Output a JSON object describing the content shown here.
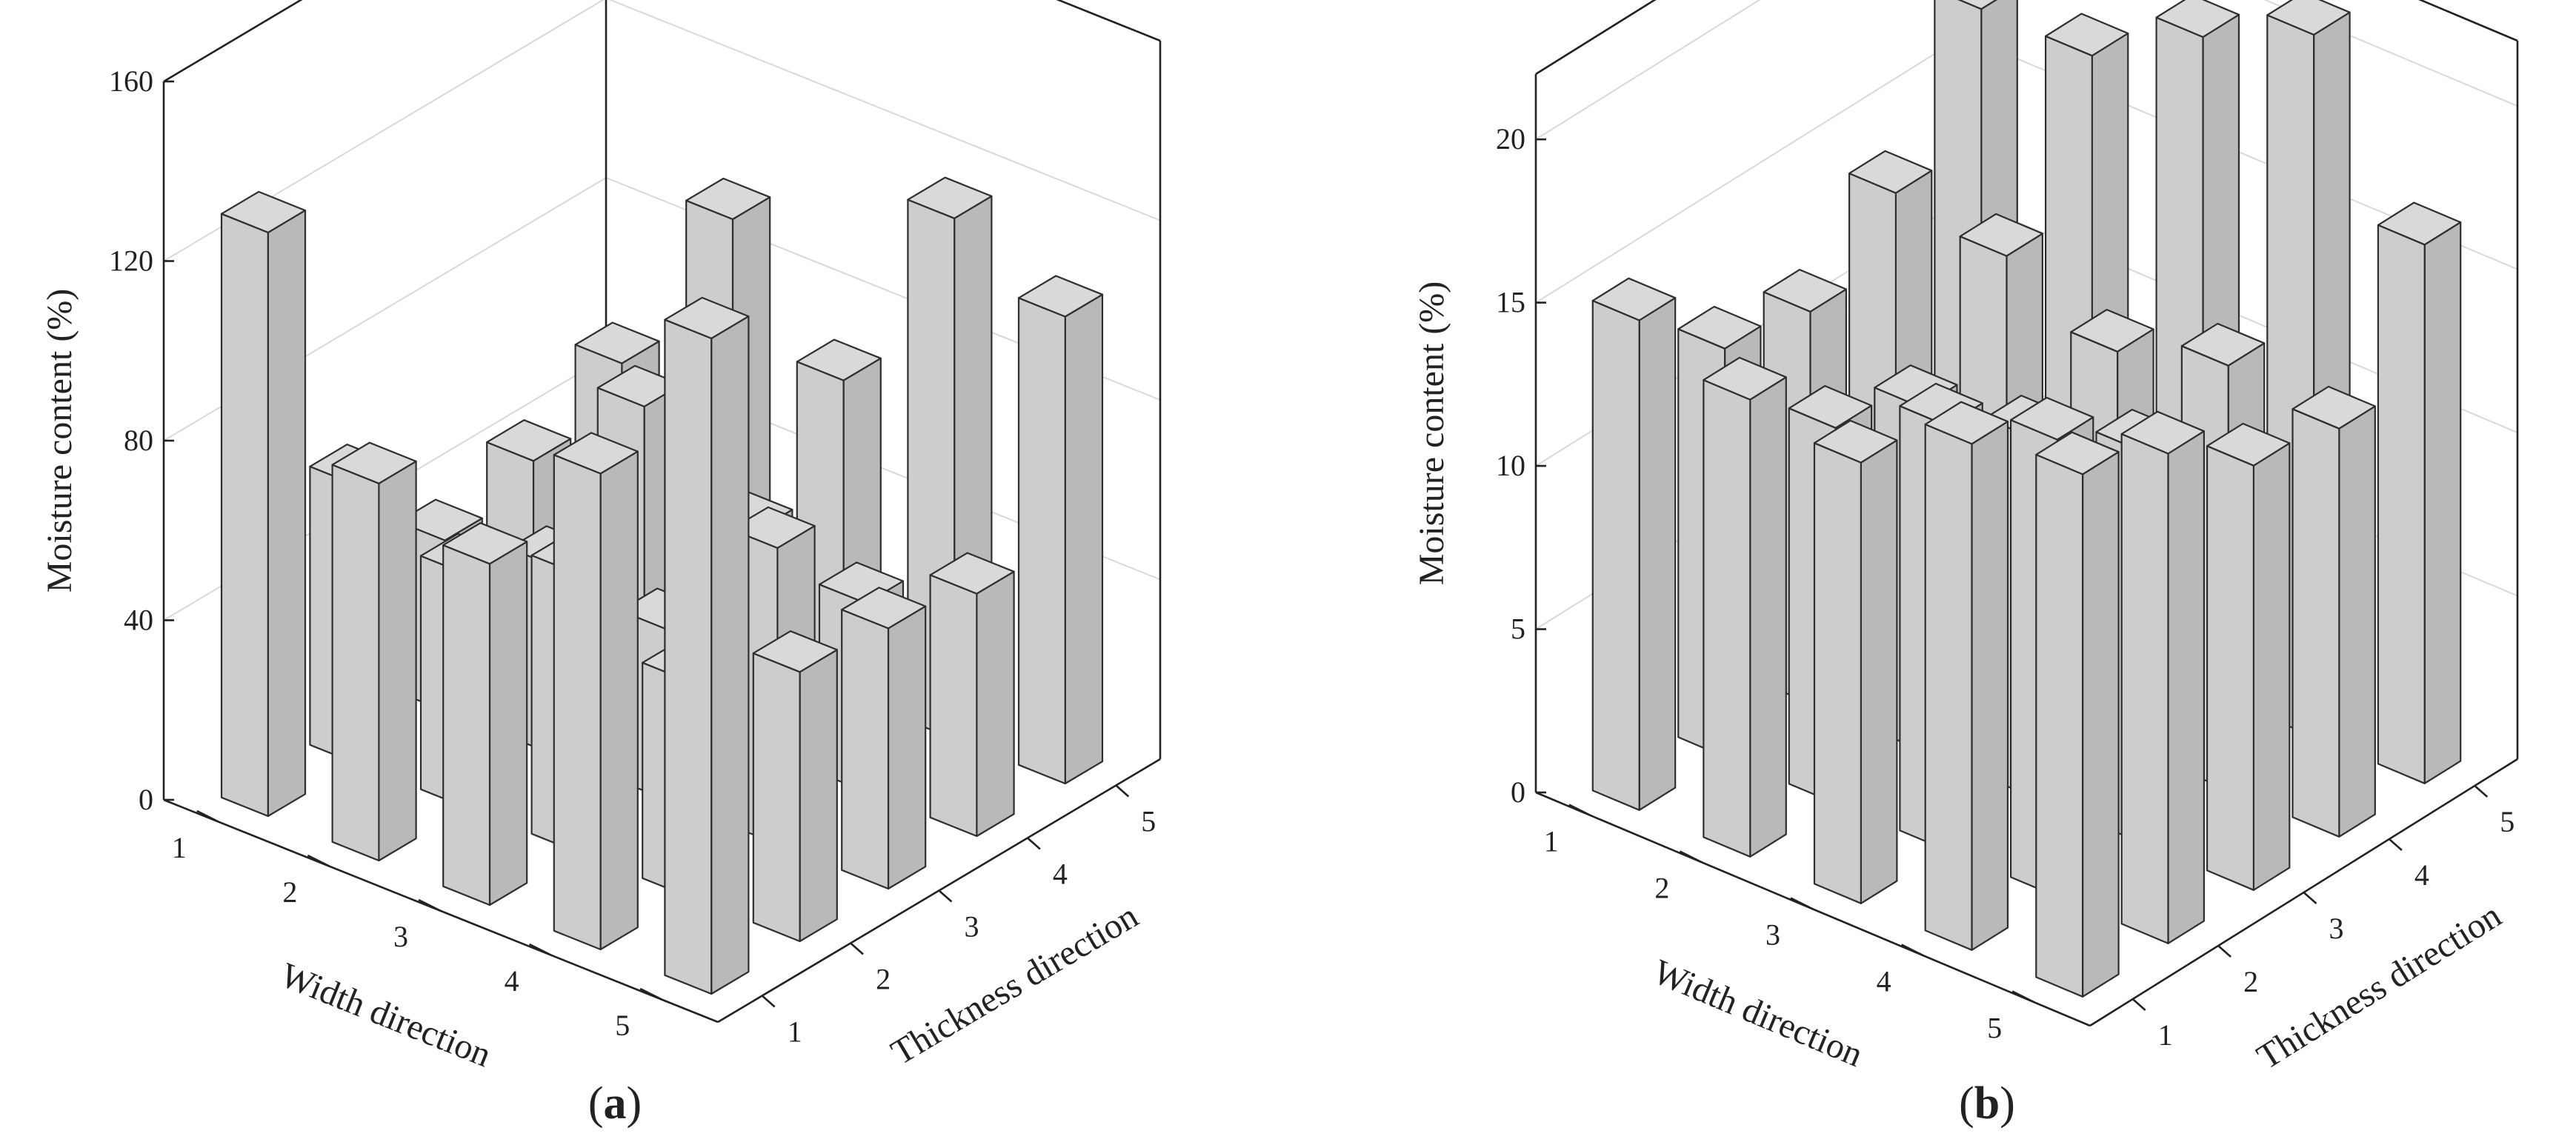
{
  "figure": {
    "bar_color_top": "#d9d9d9",
    "bar_color_left": "#cdcdcd",
    "bar_color_right": "#b9b9b9"
  },
  "chart_data": [
    {
      "type": "bar3d",
      "panel_label_open": "(",
      "panel_label_letter": "a",
      "panel_label_close": ")",
      "zlabel": "Moisture content (%)",
      "xlabel": "Width direction",
      "ylabel": "Thickness direction",
      "zlim": [
        0,
        160
      ],
      "zticks": [
        "0",
        "40",
        "80",
        "120",
        "160"
      ],
      "xticks": [
        "1",
        "2",
        "3",
        "4",
        "5"
      ],
      "yticks": [
        "1",
        "2",
        "3",
        "4",
        "5"
      ],
      "values": [
        [
          130,
          62,
          38,
          44,
          54
        ],
        [
          84,
          52,
          42,
          66,
          96
        ],
        [
          76,
          62,
          38,
          48,
          70
        ],
        [
          106,
          48,
          66,
          42,
          116
        ],
        [
          146,
          60,
          58,
          54,
          104
        ]
      ]
    },
    {
      "type": "bar3d",
      "panel_label_open": "(",
      "panel_label_letter": "b",
      "panel_label_close": ")",
      "zlabel": "Moisture content (%)",
      "xlabel": "Width direction",
      "ylabel": "Thickness direction",
      "zlim": [
        0,
        22
      ],
      "zticks": [
        "0",
        "5",
        "10",
        "15",
        "20"
      ],
      "xticks": [
        "1",
        "2",
        "3",
        "4",
        "5"
      ],
      "yticks": [
        "1",
        "2",
        "3",
        "4",
        "5"
      ],
      "values": [
        [
          15.0,
          12.5,
          12.0,
          14.0,
          18.0
        ],
        [
          14.0,
          11.5,
          10.5,
          13.5,
          18.0
        ],
        [
          13.5,
          13.0,
          11.0,
          12.0,
          20.0
        ],
        [
          15.5,
          14.0,
          12.0,
          13.0,
          21.5
        ],
        [
          16.0,
          15.0,
          13.0,
          12.5,
          16.5
        ]
      ]
    }
  ]
}
